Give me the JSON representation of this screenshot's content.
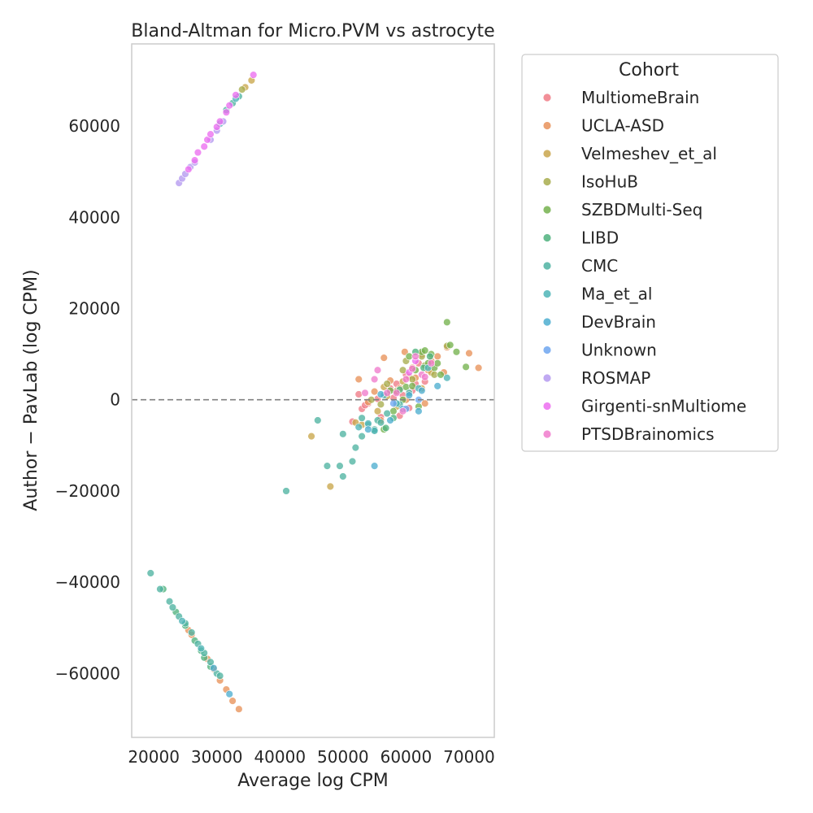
{
  "chart_data": {
    "type": "scatter",
    "title": "Bland-Altman for Micro.PVM vs astrocyte",
    "xlabel": "Average log CPM",
    "ylabel": "Author − PavLab (log CPM)",
    "xlim": [
      16500,
      74000
    ],
    "ylim": [
      -74000,
      78000
    ],
    "x_ticks": [
      20000,
      30000,
      40000,
      50000,
      60000,
      70000
    ],
    "y_ticks": [
      -60000,
      -40000,
      -20000,
      0,
      20000,
      40000,
      60000
    ],
    "x_tick_labels": [
      "20000",
      "30000",
      "40000",
      "50000",
      "60000",
      "70000"
    ],
    "y_tick_labels": [
      "−60000",
      "−40000",
      "−20000",
      "0",
      "20000",
      "40000",
      "60000"
    ],
    "reference_line": 0,
    "grid": false,
    "legend": {
      "title": "Cohort",
      "placement": "outside-right-top",
      "entries": [
        {
          "name": "MultiomeBrain",
          "color": "#f07b86"
        },
        {
          "name": "UCLA-ASD",
          "color": "#e8925a"
        },
        {
          "name": "Velmeshev_et_al",
          "color": "#c9a64c"
        },
        {
          "name": "IsoHuB",
          "color": "#a8ad4e"
        },
        {
          "name": "SZBDMulti-Seq",
          "color": "#74b24e"
        },
        {
          "name": "LIBD",
          "color": "#4fb27e"
        },
        {
          "name": "CMC",
          "color": "#4fb3a2"
        },
        {
          "name": "Ma_et_al",
          "color": "#4fb5b7"
        },
        {
          "name": "DevBrain",
          "color": "#4eaed0"
        },
        {
          "name": "Unknown",
          "color": "#6ea6f0"
        },
        {
          "name": "ROSMAP",
          "color": "#b59af0"
        },
        {
          "name": "Girgenti-snMultiome",
          "color": "#ec6ef0"
        },
        {
          "name": "PTSDBrainomics",
          "color": "#f07bcc"
        }
      ]
    },
    "series": [
      {
        "name": "MultiomeBrain",
        "points": [
          [
            52500,
            1200
          ],
          [
            53000,
            -2000
          ],
          [
            54000,
            -800
          ],
          [
            55500,
            200
          ],
          [
            56000,
            -3800
          ],
          [
            57500,
            2500
          ],
          [
            58500,
            3500
          ],
          [
            59000,
            -3500
          ],
          [
            59500,
            1000
          ],
          [
            60000,
            5500
          ],
          [
            61000,
            2000
          ],
          [
            62000,
            8000
          ],
          [
            63000,
            4000
          ],
          [
            51500,
            -4800
          ],
          [
            58000,
            400
          ],
          [
            60500,
            -1800
          ],
          [
            61500,
            3500
          ],
          [
            53500,
            -1200
          ]
        ]
      },
      {
        "name": "UCLA-ASD",
        "points": [
          [
            25500,
            -50500
          ],
          [
            26000,
            -51500
          ],
          [
            28500,
            -56800
          ],
          [
            29500,
            -59000
          ],
          [
            30500,
            -61500
          ],
          [
            31500,
            -63500
          ],
          [
            32500,
            -66000
          ],
          [
            33500,
            -67800
          ],
          [
            52500,
            4500
          ],
          [
            54000,
            -500
          ],
          [
            55000,
            1800
          ],
          [
            56500,
            9200
          ],
          [
            57500,
            4200
          ],
          [
            59000,
            2500
          ],
          [
            59800,
            10500
          ],
          [
            60500,
            5000
          ],
          [
            61500,
            4800
          ],
          [
            62500,
            10000
          ],
          [
            63000,
            -800
          ],
          [
            64000,
            8500
          ],
          [
            65000,
            9500
          ],
          [
            66000,
            6000
          ],
          [
            66500,
            11500
          ],
          [
            70000,
            10200
          ],
          [
            71500,
            7000
          ],
          [
            56000,
            -4500
          ],
          [
            58500,
            2000
          ],
          [
            60000,
            0
          ],
          [
            61000,
            7000
          ],
          [
            63500,
            6500
          ]
        ]
      },
      {
        "name": "Velmeshev_et_al",
        "points": [
          [
            45000,
            -8000
          ],
          [
            48000,
            -19000
          ],
          [
            53000,
            -5500
          ],
          [
            55500,
            -2500
          ],
          [
            57000,
            800
          ],
          [
            58500,
            -1500
          ],
          [
            59500,
            4000
          ],
          [
            62500,
            2500
          ],
          [
            64000,
            6000
          ],
          [
            34500,
            68500
          ],
          [
            35500,
            70000
          ],
          [
            52000,
            -5000
          ],
          [
            56500,
            2800
          ],
          [
            60500,
            1500
          ]
        ]
      },
      {
        "name": "IsoHuB",
        "points": [
          [
            54500,
            0
          ],
          [
            57000,
            3500
          ],
          [
            58500,
            1800
          ],
          [
            59500,
            6500
          ],
          [
            61000,
            4500
          ],
          [
            62500,
            9500
          ],
          [
            64500,
            5500
          ],
          [
            66500,
            11800
          ],
          [
            34000,
            68000
          ],
          [
            56000,
            -1000
          ],
          [
            60000,
            8500
          ],
          [
            63000,
            7500
          ]
        ]
      },
      {
        "name": "SZBDMulti-Seq",
        "points": [
          [
            56500,
            -6500
          ],
          [
            58000,
            -2500
          ],
          [
            59500,
            0
          ],
          [
            60500,
            9500
          ],
          [
            61500,
            6500
          ],
          [
            62500,
            10500
          ],
          [
            63500,
            8000
          ],
          [
            64500,
            7000
          ],
          [
            65500,
            5500
          ],
          [
            66500,
            17000
          ],
          [
            67000,
            12000
          ],
          [
            68000,
            10500
          ],
          [
            69500,
            7200
          ],
          [
            62000,
            -1500
          ],
          [
            60000,
            2800
          ],
          [
            63000,
            10800
          ],
          [
            64000,
            10000
          ],
          [
            65000,
            8000
          ],
          [
            57500,
            2000
          ],
          [
            61000,
            3000
          ]
        ]
      },
      {
        "name": "LIBD",
        "points": [
          [
            21500,
            -41500
          ],
          [
            23500,
            -46500
          ],
          [
            25000,
            -49500
          ],
          [
            26500,
            -52800
          ],
          [
            27500,
            -55000
          ],
          [
            28000,
            -56500
          ],
          [
            29000,
            -58500
          ],
          [
            55000,
            -6800
          ],
          [
            56800,
            -6200
          ],
          [
            59000,
            2200
          ],
          [
            61500,
            10500
          ],
          [
            62800,
            7000
          ],
          [
            63800,
            9500
          ],
          [
            58000,
            -4000
          ]
        ]
      },
      {
        "name": "CMC",
        "points": [
          [
            19500,
            -38000
          ],
          [
            21000,
            -41500
          ],
          [
            22500,
            -44200
          ],
          [
            23000,
            -45500
          ],
          [
            24000,
            -47500
          ],
          [
            25000,
            -49000
          ],
          [
            26000,
            -51000
          ],
          [
            27000,
            -53500
          ],
          [
            28000,
            -55500
          ],
          [
            29000,
            -57500
          ],
          [
            30000,
            -60000
          ],
          [
            30500,
            -60500
          ],
          [
            50000,
            -7500
          ],
          [
            52000,
            -10500
          ],
          [
            53000,
            -8000
          ],
          [
            54000,
            -5500
          ],
          [
            55500,
            -4500
          ],
          [
            56000,
            -5000
          ],
          [
            47500,
            -14500
          ],
          [
            49500,
            -14500
          ],
          [
            50000,
            -16800
          ],
          [
            51500,
            -13500
          ],
          [
            41000,
            -20000
          ],
          [
            46000,
            -4500
          ],
          [
            53000,
            -4000
          ],
          [
            55000,
            -6500
          ],
          [
            57000,
            -3000
          ],
          [
            59000,
            -1000
          ],
          [
            31500,
            63500
          ],
          [
            32500,
            65000
          ],
          [
            33500,
            66500
          ]
        ]
      },
      {
        "name": "Ma_et_al",
        "points": [
          [
            52500,
            -6000
          ],
          [
            54000,
            -5200
          ],
          [
            55000,
            -6800
          ],
          [
            56500,
            1000
          ],
          [
            58500,
            -800
          ],
          [
            60500,
            1500
          ],
          [
            62000,
            2500
          ],
          [
            63500,
            7000
          ],
          [
            66500,
            4800
          ],
          [
            24500,
            -48500
          ],
          [
            27500,
            -54500
          ],
          [
            30500,
            60500
          ],
          [
            33000,
            66000
          ]
        ]
      },
      {
        "name": "DevBrain",
        "points": [
          [
            32000,
            -64500
          ],
          [
            29500,
            -58800
          ],
          [
            55000,
            -14500
          ],
          [
            56000,
            1200
          ],
          [
            57500,
            -4500
          ],
          [
            59500,
            -2000
          ],
          [
            60500,
            1000
          ],
          [
            62000,
            -2500
          ],
          [
            62500,
            2000
          ],
          [
            65000,
            3000
          ],
          [
            54000,
            -6500
          ]
        ]
      },
      {
        "name": "Unknown",
        "points": [
          [
            58000,
            -800
          ],
          [
            60000,
            -2000
          ],
          [
            62000,
            0
          ]
        ]
      },
      {
        "name": "ROSMAP",
        "points": [
          [
            24000,
            47500
          ],
          [
            24500,
            48500
          ],
          [
            25000,
            49500
          ],
          [
            25800,
            51000
          ],
          [
            26500,
            52000
          ],
          [
            29000,
            57000
          ],
          [
            30000,
            59000
          ],
          [
            31000,
            61000
          ]
        ]
      },
      {
        "name": "Girgenti-snMultiome",
        "points": [
          [
            25500,
            50500
          ],
          [
            26500,
            52500
          ],
          [
            27000,
            54200
          ],
          [
            28000,
            55500
          ],
          [
            28500,
            57000
          ],
          [
            29000,
            58200
          ],
          [
            30000,
            59800
          ],
          [
            30500,
            61000
          ],
          [
            31500,
            63000
          ],
          [
            32000,
            64500
          ],
          [
            33000,
            66800
          ],
          [
            35800,
            71200
          ],
          [
            60500,
            6000
          ],
          [
            61500,
            8500
          ]
        ]
      },
      {
        "name": "PTSDBrainomics",
        "points": [
          [
            55000,
            4500
          ],
          [
            57000,
            1500
          ],
          [
            59500,
            -2500
          ],
          [
            61500,
            9500
          ],
          [
            62500,
            5500
          ],
          [
            55500,
            6500
          ],
          [
            58500,
            1500
          ],
          [
            60000,
            4500
          ],
          [
            61000,
            6800
          ],
          [
            63000,
            5000
          ],
          [
            64000,
            8000
          ],
          [
            53500,
            1500
          ]
        ]
      }
    ]
  }
}
